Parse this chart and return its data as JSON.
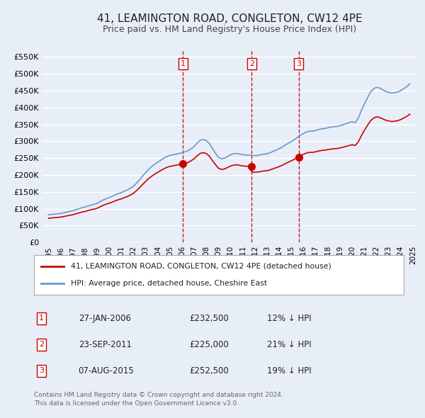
{
  "title": "41, LEAMINGTON ROAD, CONGLETON, CW12 4PE",
  "subtitle": "Price paid vs. HM Land Registry's House Price Index (HPI)",
  "legend_label_red": "41, LEAMINGTON ROAD, CONGLETON, CW12 4PE (detached house)",
  "legend_label_blue": "HPI: Average price, detached house, Cheshire East",
  "footer_line1": "Contains HM Land Registry data © Crown copyright and database right 2024.",
  "footer_line2": "This data is licensed under the Open Government Licence v3.0.",
  "transactions": [
    {
      "num": 1,
      "date": "2006-01-27",
      "date_label": "27-JAN-2006",
      "price": 232500,
      "price_label": "£232,500",
      "pct": "12%",
      "direction": "↓",
      "x_year": 2006.07
    },
    {
      "num": 2,
      "date": "2011-09-23",
      "date_label": "23-SEP-2011",
      "price": 225000,
      "price_label": "£225,000",
      "pct": "21%",
      "direction": "↓",
      "x_year": 2011.73
    },
    {
      "num": 3,
      "date": "2015-08-07",
      "date_label": "07-AUG-2015",
      "price": 252500,
      "price_label": "£252,500",
      "pct": "19%",
      "direction": "↓",
      "x_year": 2015.6
    }
  ],
  "ylim": [
    0,
    570000
  ],
  "yticks": [
    0,
    50000,
    100000,
    150000,
    200000,
    250000,
    300000,
    350000,
    400000,
    450000,
    500000,
    550000
  ],
  "ytick_labels": [
    "£0",
    "£50K",
    "£100K",
    "£150K",
    "£200K",
    "£250K",
    "£300K",
    "£350K",
    "£400K",
    "£450K",
    "£500K",
    "£550K"
  ],
  "xlim_start": 1994.5,
  "xlim_end": 2025.3,
  "xticks": [
    1995,
    1996,
    1997,
    1998,
    1999,
    2000,
    2001,
    2002,
    2003,
    2004,
    2005,
    2006,
    2007,
    2008,
    2009,
    2010,
    2011,
    2012,
    2013,
    2014,
    2015,
    2016,
    2017,
    2018,
    2019,
    2020,
    2021,
    2022,
    2023,
    2024,
    2025
  ],
  "background_color": "#e8eef8",
  "plot_bg_color": "#e8eef8",
  "grid_color": "#ffffff",
  "red_color": "#cc0000",
  "blue_color": "#6699cc",
  "hpi_data": {
    "years": [
      1995.0,
      1995.25,
      1995.5,
      1995.75,
      1996.0,
      1996.25,
      1996.5,
      1996.75,
      1997.0,
      1997.25,
      1997.5,
      1997.75,
      1998.0,
      1998.25,
      1998.5,
      1998.75,
      1999.0,
      1999.25,
      1999.5,
      1999.75,
      2000.0,
      2000.25,
      2000.5,
      2000.75,
      2001.0,
      2001.25,
      2001.5,
      2001.75,
      2002.0,
      2002.25,
      2002.5,
      2002.75,
      2003.0,
      2003.25,
      2003.5,
      2003.75,
      2004.0,
      2004.25,
      2004.5,
      2004.75,
      2005.0,
      2005.25,
      2005.5,
      2005.75,
      2006.0,
      2006.25,
      2006.5,
      2006.75,
      2007.0,
      2007.25,
      2007.5,
      2007.75,
      2008.0,
      2008.25,
      2008.5,
      2008.75,
      2009.0,
      2009.25,
      2009.5,
      2009.75,
      2010.0,
      2010.25,
      2010.5,
      2010.75,
      2011.0,
      2011.25,
      2011.5,
      2011.75,
      2012.0,
      2012.25,
      2012.5,
      2012.75,
      2013.0,
      2013.25,
      2013.5,
      2013.75,
      2014.0,
      2014.25,
      2014.5,
      2014.75,
      2015.0,
      2015.25,
      2015.5,
      2015.75,
      2016.0,
      2016.25,
      2016.5,
      2016.75,
      2017.0,
      2017.25,
      2017.5,
      2017.75,
      2018.0,
      2018.25,
      2018.5,
      2018.75,
      2019.0,
      2019.25,
      2019.5,
      2019.75,
      2020.0,
      2020.25,
      2020.5,
      2020.75,
      2021.0,
      2021.25,
      2021.5,
      2021.75,
      2022.0,
      2022.25,
      2022.5,
      2022.75,
      2023.0,
      2023.25,
      2023.5,
      2023.75,
      2024.0,
      2024.25,
      2024.5,
      2024.75
    ],
    "values": [
      82000,
      83000,
      84000,
      85000,
      86000,
      88000,
      90000,
      92000,
      94000,
      97000,
      100000,
      103000,
      105000,
      108000,
      111000,
      113000,
      116000,
      121000,
      126000,
      130000,
      133000,
      137000,
      141000,
      145000,
      148000,
      152000,
      156000,
      161000,
      167000,
      176000,
      186000,
      197000,
      207000,
      217000,
      225000,
      232000,
      238000,
      244000,
      250000,
      255000,
      258000,
      260000,
      262000,
      264000,
      266000,
      269000,
      272000,
      278000,
      285000,
      295000,
      303000,
      305000,
      302000,
      293000,
      278000,
      264000,
      252000,
      248000,
      250000,
      255000,
      260000,
      263000,
      264000,
      262000,
      260000,
      259000,
      259000,
      258000,
      257000,
      258000,
      260000,
      262000,
      263000,
      266000,
      270000,
      274000,
      278000,
      283000,
      289000,
      294000,
      299000,
      305000,
      312000,
      318000,
      323000,
      328000,
      330000,
      330000,
      332000,
      335000,
      337000,
      338000,
      340000,
      342000,
      343000,
      344000,
      346000,
      349000,
      352000,
      355000,
      358000,
      355000,
      368000,
      390000,
      410000,
      428000,
      445000,
      455000,
      460000,
      458000,
      453000,
      448000,
      445000,
      443000,
      444000,
      446000,
      450000,
      456000,
      462000,
      470000
    ]
  },
  "property_data": {
    "years": [
      1995.5,
      2006.07,
      2011.73,
      2015.6
    ],
    "values": [
      83000,
      232500,
      225000,
      252500
    ]
  }
}
